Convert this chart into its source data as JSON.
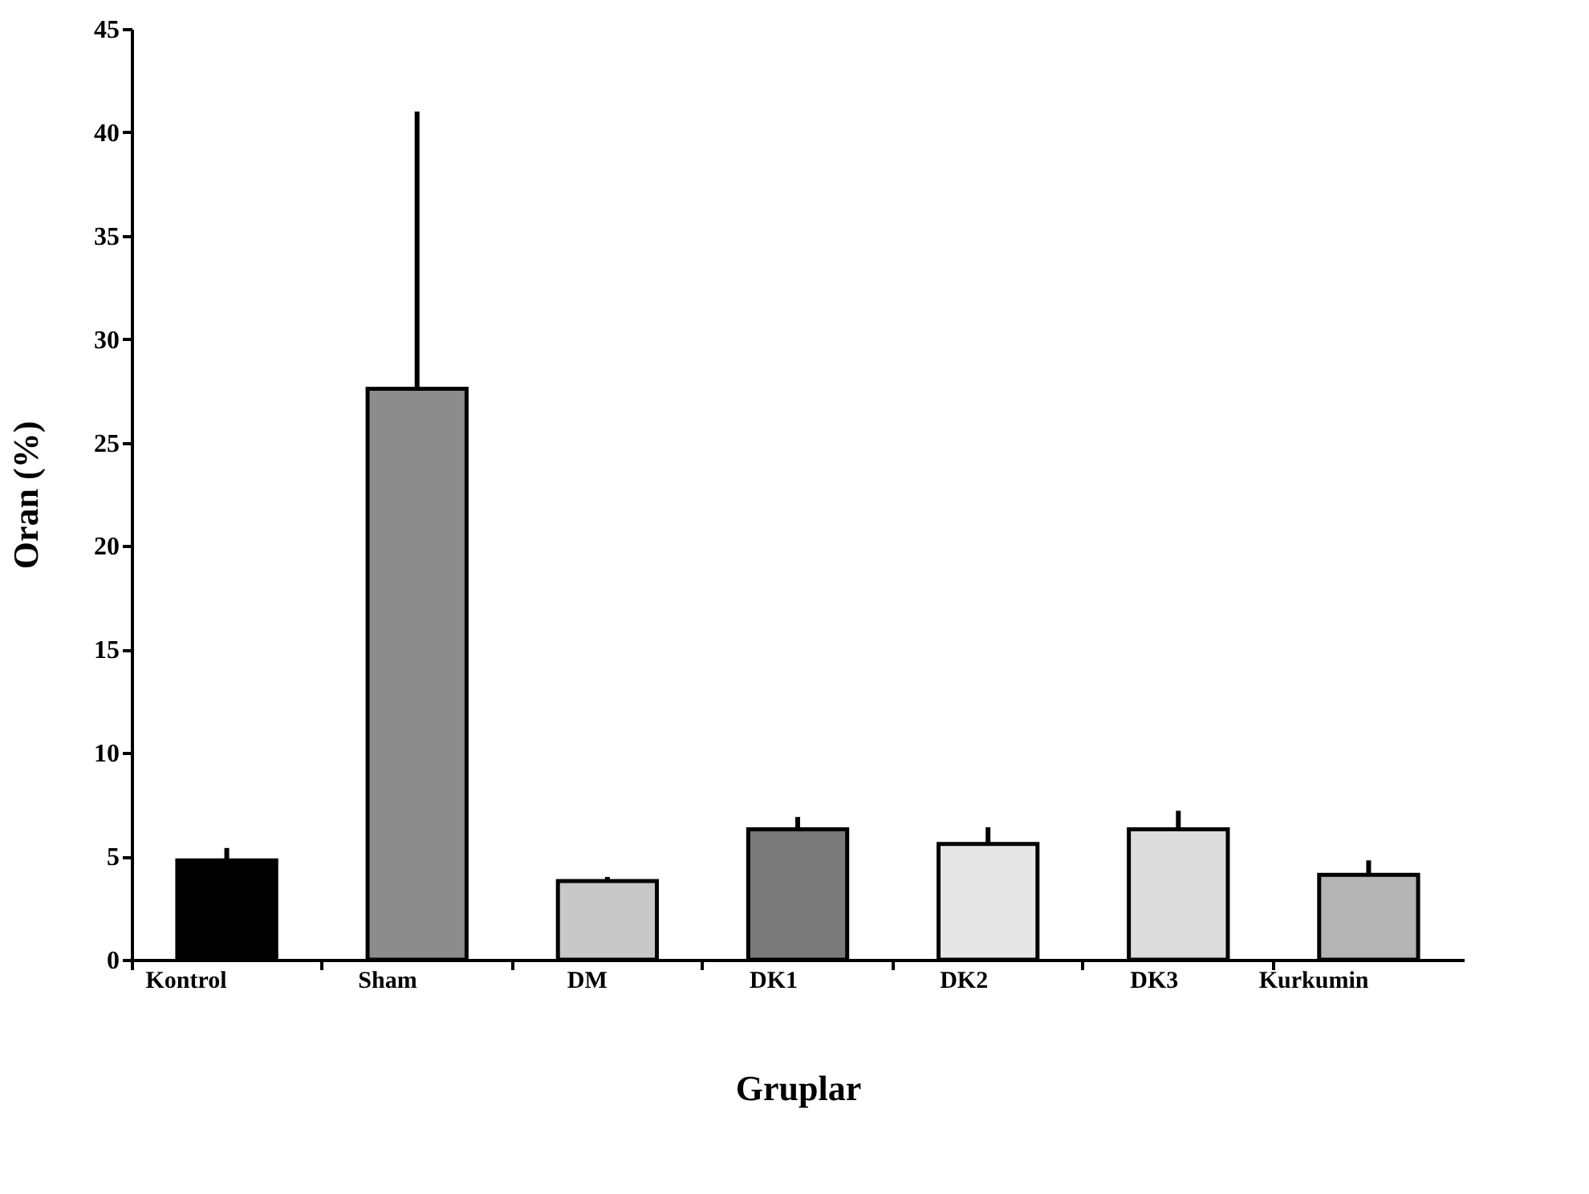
{
  "chart_data": {
    "type": "bar",
    "categories": [
      "Kontrol",
      "Sham",
      "DM",
      "DK1",
      "DK2",
      "DK3",
      "Kurkumin"
    ],
    "values": [
      4.8,
      27.6,
      3.8,
      6.3,
      5.6,
      6.3,
      4.1
    ],
    "errors": [
      [
        4.8,
        5.4
      ],
      [
        27.6,
        41.0
      ],
      [
        3.8,
        4.0
      ],
      [
        6.3,
        6.9
      ],
      [
        5.6,
        6.4
      ],
      [
        6.3,
        7.2
      ],
      [
        4.1,
        4.8
      ]
    ],
    "colors": [
      "#000000",
      "#8c8c8c",
      "#c8c8c8",
      "#7a7a7a",
      "#e6e6e6",
      "#dcdcdc",
      "#b4b4b4"
    ],
    "xlabel": "Gruplar",
    "ylabel": "Oran (%)",
    "ylim": [
      0,
      45
    ],
    "yticks": [
      0,
      5,
      10,
      15,
      20,
      25,
      30,
      35,
      40,
      45
    ],
    "grid": false
  }
}
